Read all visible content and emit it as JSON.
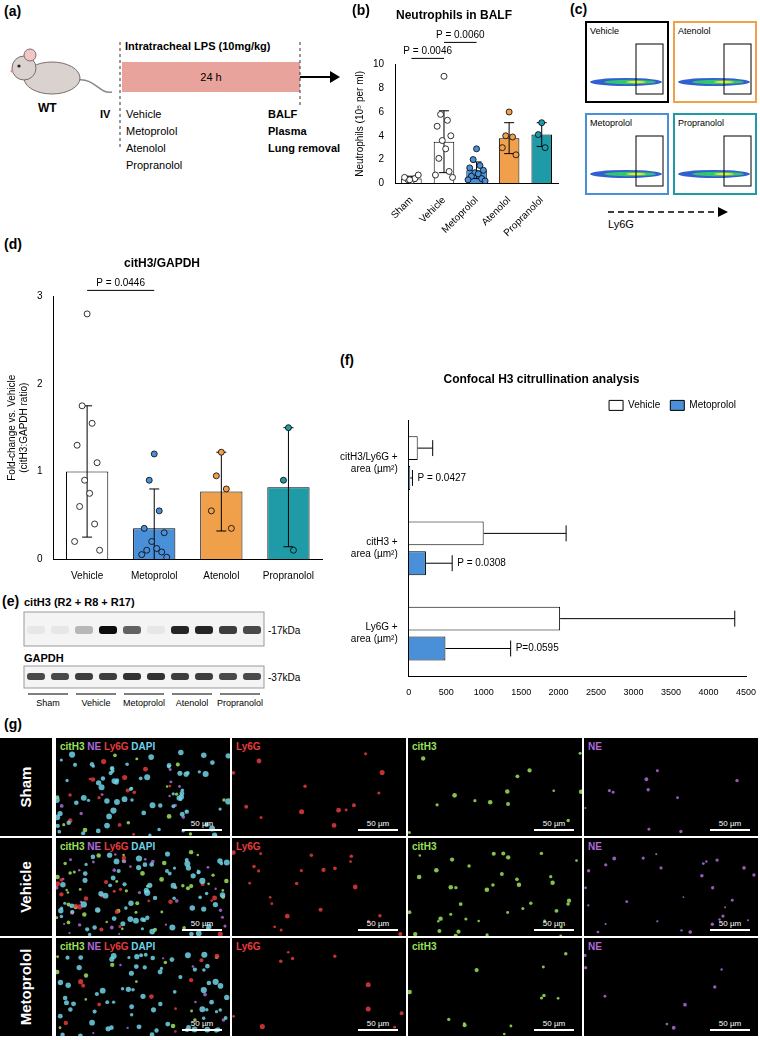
{
  "chart_data": [
    {
      "panel_label": "(b)",
      "type": "bar",
      "title": "Neutrophils in BALF",
      "y_label": "Neutrophils (10⁵ per ml)",
      "categories": [
        "Sham",
        "Vehicle",
        "Metoprolol",
        "Atenolol",
        "Propranolol"
      ],
      "values": [
        0.4,
        3.5,
        1.1,
        3.8,
        4.1
      ],
      "errors": [
        0.2,
        2.6,
        0.7,
        1.3,
        1.0
      ],
      "points": [
        [
          0.2,
          0.3,
          0.4,
          0.5,
          0.7,
          0.3
        ],
        [
          9.0,
          5.8,
          5.3,
          4.8,
          4.0,
          3.6,
          2.9,
          2.1,
          1.0,
          0.7,
          0.5
        ],
        [
          2.9,
          2.0,
          1.5,
          1.3,
          1.1,
          0.9,
          0.8,
          0.6,
          0.4,
          0.3,
          0.2
        ],
        [
          6.0,
          4.0,
          3.9,
          3.0,
          2.4
        ],
        [
          5.1,
          4.1,
          3.0
        ]
      ],
      "colors": [
        "#ffffff",
        "#ffffff",
        "#4a90d9",
        "#f0a04b",
        "#1f9aa7"
      ],
      "ylim": [
        0,
        10
      ],
      "yticks": [
        0,
        2,
        4,
        6,
        8,
        10
      ],
      "grid": false,
      "marker": "circle",
      "annotations": [
        {
          "text": "P = 0.0046",
          "from": "Sham",
          "to": "Vehicle"
        },
        {
          "text": "P = 0.0060",
          "from": "Vehicle",
          "to": "Metoprolol"
        }
      ]
    },
    {
      "panel_label": "(d)",
      "type": "bar",
      "title": "citH3/GAPDH",
      "y_label": [
        "Fold-change vs. Vehicle",
        "(citH3:GAPDH ratio)"
      ],
      "categories": [
        "Vehicle",
        "Metoprolol",
        "Atenolol",
        "Propranolol"
      ],
      "values": [
        1.0,
        0.35,
        0.77,
        0.82
      ],
      "errors": [
        0.75,
        0.45,
        0.45,
        0.68
      ],
      "points": [
        [
          2.8,
          1.75,
          1.55,
          1.3,
          1.1,
          0.9,
          0.75,
          0.6,
          0.4,
          0.2,
          0.1
        ],
        [
          1.2,
          0.9,
          0.55,
          0.35,
          0.3,
          0.2,
          0.12,
          0.1,
          0.08,
          0.05,
          0.02
        ],
        [
          1.22,
          0.95,
          0.8,
          0.55,
          0.35
        ],
        [
          1.5,
          0.9,
          0.1
        ]
      ],
      "colors": [
        "#ffffff",
        "#4a90d9",
        "#f0a04b",
        "#1f9aa7"
      ],
      "ylim": [
        0,
        3
      ],
      "yticks": [
        0,
        1,
        2,
        3
      ],
      "grid": false,
      "marker": "circle",
      "annotations": [
        {
          "text": "P = 0.0446",
          "from": "Vehicle",
          "to": "Metoprolol"
        }
      ]
    },
    {
      "panel_label": "(f)",
      "type": "bar",
      "title": "Confocal H3 citrullination analysis",
      "orientation": "horizontal",
      "categories": [
        [
          "citH3/Ly6G +",
          "area (µm²)"
        ],
        [
          "citH3 +",
          "area (µm²)"
        ],
        [
          "Ly6G +",
          "area (µm²)"
        ]
      ],
      "series": [
        {
          "name": "Vehicle",
          "color": "#ffffff",
          "values": [
            120,
            1000,
            2020
          ],
          "errors": [
            200,
            1100,
            2330
          ]
        },
        {
          "name": "Metoprolol",
          "color": "#4a90d9",
          "values": [
            20,
            230,
            490
          ],
          "errors": [
            30,
            350,
            870
          ],
          "p_values": [
            "P = 0.0427",
            "P = 0.0308",
            "P=0.0595"
          ]
        }
      ],
      "xlim": [
        0,
        4500
      ],
      "xticks": [
        0,
        500,
        1000,
        1500,
        2000,
        2500,
        3000,
        3500,
        4000,
        4500
      ],
      "grid": false,
      "legend": "top-right"
    }
  ],
  "diagram_a": {
    "panel_label": "(a)",
    "mouse_label": "WT",
    "treatment_label": "Intratracheal LPS (10mg/kg)",
    "duration": "24 h",
    "route": "IV",
    "treatments": [
      "Vehicle",
      "Metoprolol",
      "Atenolol",
      "Propranolol"
    ],
    "endpoints": [
      "BALF",
      "Plasma",
      "Lung removal"
    ]
  },
  "flow_c": {
    "panel_label": "(c)",
    "axis_label": "Ly6G",
    "plots": [
      {
        "label": "Vehicle",
        "color": "#000000"
      },
      {
        "label": "Atenolol",
        "color": "#f0a04b"
      },
      {
        "label": "Metoprolol",
        "color": "#4a90d9"
      },
      {
        "label": "Propranolol",
        "color": "#1f9aa7"
      }
    ]
  },
  "blot_e": {
    "panel_label": "(e)",
    "target": "citH3 (R2 + R8 + R17)",
    "target_size": "-17kDa",
    "loading_control": "GAPDH",
    "loading_control_size": "-37kDa",
    "lanes": [
      "Sham",
      "Vehicle",
      "Metoprolol",
      "Atenolol",
      "Propranolol"
    ],
    "bands": {
      "target": [
        0.05,
        0.05,
        0.25,
        0.95,
        0.6,
        0.05,
        0.85,
        0.85,
        0.75,
        0.7
      ],
      "loading_control": [
        0.7,
        0.7,
        0.75,
        0.75,
        0.8,
        0.8,
        0.75,
        0.75,
        0.7,
        0.7
      ]
    }
  },
  "images_g": {
    "panel_label": "(g)",
    "rows": [
      "Sham",
      "Vehicle",
      "Metoprolol"
    ],
    "channels": [
      {
        "name": "citH3",
        "color": "#9be35a"
      },
      {
        "name": "NE",
        "color": "#b06ad8"
      },
      {
        "name": "Ly6G",
        "color": "#e53b3b"
      },
      {
        "name": "DAPI",
        "color": "#6fd3e8"
      }
    ],
    "columns": [
      [
        "citH3",
        "NE",
        "Ly6G",
        "DAPI"
      ],
      [
        "Ly6G"
      ],
      [
        "citH3"
      ],
      [
        "NE"
      ]
    ],
    "scale_bar": "50 µm"
  }
}
